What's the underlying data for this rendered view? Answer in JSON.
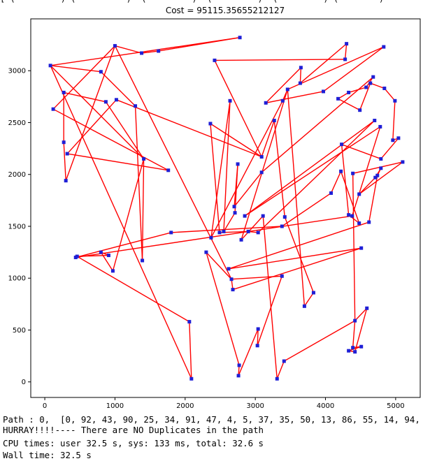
{
  "top_fragment": "[ (         ) (          )  (         )  (         )  (         ) (        )",
  "chart_data": {
    "type": "scatter",
    "title": "Cost = 95115.35655212127",
    "xlabel": "",
    "ylabel": "",
    "xlim": [
      -200,
      5350
    ],
    "ylim": [
      -150,
      3500
    ],
    "x_ticks": [
      0,
      1000,
      2000,
      3000,
      4000,
      5000
    ],
    "y_ticks": [
      0,
      500,
      1000,
      1500,
      2000,
      2500,
      3000
    ],
    "grid": false,
    "line_color": "#ff0000",
    "marker_color": "#1f1fd6",
    "cities": [
      {
        "id": 0,
        "x": 1000,
        "y": 3240
      },
      {
        "id": 1,
        "x": 800,
        "y": 2990
      },
      {
        "id": 2,
        "x": 80,
        "y": 3050
      },
      {
        "id": 3,
        "x": 1380,
        "y": 3170
      },
      {
        "id": 4,
        "x": 2780,
        "y": 3320
      },
      {
        "id": 5,
        "x": 1620,
        "y": 3190
      },
      {
        "id": 6,
        "x": 2420,
        "y": 3100
      },
      {
        "id": 7,
        "x": 4280,
        "y": 3110
      },
      {
        "id": 8,
        "x": 4300,
        "y": 3260
      },
      {
        "id": 9,
        "x": 4830,
        "y": 3230
      },
      {
        "id": 10,
        "x": 3650,
        "y": 3030
      },
      {
        "id": 11,
        "x": 3640,
        "y": 2880
      },
      {
        "id": 12,
        "x": 3970,
        "y": 2800
      },
      {
        "id": 13,
        "x": 3460,
        "y": 2820
      },
      {
        "id": 14,
        "x": 3150,
        "y": 2690
      },
      {
        "id": 15,
        "x": 3390,
        "y": 2710
      },
      {
        "id": 16,
        "x": 270,
        "y": 2790
      },
      {
        "id": 17,
        "x": 120,
        "y": 2630
      },
      {
        "id": 18,
        "x": 870,
        "y": 2700
      },
      {
        "id": 19,
        "x": 1020,
        "y": 2720
      },
      {
        "id": 20,
        "x": 1290,
        "y": 2660
      },
      {
        "id": 21,
        "x": 2640,
        "y": 2710
      },
      {
        "id": 22,
        "x": 2360,
        "y": 2490
      },
      {
        "id": 23,
        "x": 3270,
        "y": 2520
      },
      {
        "id": 24,
        "x": 270,
        "y": 2310
      },
      {
        "id": 25,
        "x": 320,
        "y": 2200
      },
      {
        "id": 26,
        "x": 1410,
        "y": 2150
      },
      {
        "id": 27,
        "x": 1760,
        "y": 2040
      },
      {
        "id": 28,
        "x": 3090,
        "y": 2170
      },
      {
        "id": 29,
        "x": 2750,
        "y": 2100
      },
      {
        "id": 30,
        "x": 3090,
        "y": 2020
      },
      {
        "id": 31,
        "x": 300,
        "y": 1940
      },
      {
        "id": 32,
        "x": 4180,
        "y": 2730
      },
      {
        "id": 33,
        "x": 4330,
        "y": 2790
      },
      {
        "id": 34,
        "x": 4580,
        "y": 2840
      },
      {
        "id": 35,
        "x": 4680,
        "y": 2940
      },
      {
        "id": 36,
        "x": 4640,
        "y": 2880
      },
      {
        "id": 37,
        "x": 4840,
        "y": 2830
      },
      {
        "id": 38,
        "x": 4990,
        "y": 2710
      },
      {
        "id": 39,
        "x": 4490,
        "y": 2620
      },
      {
        "id": 40,
        "x": 4700,
        "y": 2520
      },
      {
        "id": 41,
        "x": 4780,
        "y": 2460
      },
      {
        "id": 42,
        "x": 4960,
        "y": 2330
      },
      {
        "id": 43,
        "x": 5040,
        "y": 2350
      },
      {
        "id": 44,
        "x": 4230,
        "y": 2290
      },
      {
        "id": 45,
        "x": 4790,
        "y": 2150
      },
      {
        "id": 46,
        "x": 5100,
        "y": 2120
      },
      {
        "id": 47,
        "x": 4390,
        "y": 2010
      },
      {
        "id": 48,
        "x": 4220,
        "y": 2030
      },
      {
        "id": 49,
        "x": 4790,
        "y": 2060
      },
      {
        "id": 50,
        "x": 4740,
        "y": 1990
      },
      {
        "id": 51,
        "x": 4710,
        "y": 1970
      },
      {
        "id": 52,
        "x": 4480,
        "y": 1810
      },
      {
        "id": 53,
        "x": 4080,
        "y": 1820
      },
      {
        "id": 54,
        "x": 4330,
        "y": 1610
      },
      {
        "id": 55,
        "x": 4380,
        "y": 1600
      },
      {
        "id": 56,
        "x": 4480,
        "y": 1530
      },
      {
        "id": 57,
        "x": 4620,
        "y": 1540
      },
      {
        "id": 58,
        "x": 2700,
        "y": 1690
      },
      {
        "id": 59,
        "x": 2710,
        "y": 1630
      },
      {
        "id": 60,
        "x": 2550,
        "y": 1450
      },
      {
        "id": 61,
        "x": 2490,
        "y": 1440
      },
      {
        "id": 62,
        "x": 2370,
        "y": 1390
      },
      {
        "id": 63,
        "x": 2850,
        "y": 1600
      },
      {
        "id": 64,
        "x": 3110,
        "y": 1600
      },
      {
        "id": 65,
        "x": 3420,
        "y": 1590
      },
      {
        "id": 66,
        "x": 3380,
        "y": 1500
      },
      {
        "id": 67,
        "x": 3040,
        "y": 1440
      },
      {
        "id": 68,
        "x": 2900,
        "y": 1450
      },
      {
        "id": 69,
        "x": 2800,
        "y": 1370
      },
      {
        "id": 70,
        "x": 1800,
        "y": 1440
      },
      {
        "id": 71,
        "x": 2300,
        "y": 1250
      },
      {
        "id": 72,
        "x": 2620,
        "y": 1090
      },
      {
        "id": 73,
        "x": 2660,
        "y": 990
      },
      {
        "id": 74,
        "x": 2680,
        "y": 890
      },
      {
        "id": 75,
        "x": 4510,
        "y": 1290
      },
      {
        "id": 76,
        "x": 3380,
        "y": 1020
      },
      {
        "id": 77,
        "x": 800,
        "y": 1250
      },
      {
        "id": 78,
        "x": 910,
        "y": 1220
      },
      {
        "id": 79,
        "x": 460,
        "y": 1210
      },
      {
        "id": 80,
        "x": 440,
        "y": 1200
      },
      {
        "id": 81,
        "x": 970,
        "y": 1070
      },
      {
        "id": 82,
        "x": 1390,
        "y": 1170
      },
      {
        "id": 83,
        "x": 3830,
        "y": 860
      },
      {
        "id": 84,
        "x": 3700,
        "y": 730
      },
      {
        "id": 85,
        "x": 2060,
        "y": 580
      },
      {
        "id": 86,
        "x": 4590,
        "y": 710
      },
      {
        "id": 87,
        "x": 4420,
        "y": 590
      },
      {
        "id": 88,
        "x": 3040,
        "y": 510
      },
      {
        "id": 89,
        "x": 3030,
        "y": 350
      },
      {
        "id": 90,
        "x": 4510,
        "y": 340
      },
      {
        "id": 91,
        "x": 4390,
        "y": 330
      },
      {
        "id": 92,
        "x": 4330,
        "y": 300
      },
      {
        "id": 93,
        "x": 4420,
        "y": 290
      },
      {
        "id": 94,
        "x": 2770,
        "y": 160
      },
      {
        "id": 95,
        "x": 2760,
        "y": 60
      },
      {
        "id": 96,
        "x": 3410,
        "y": 200
      },
      {
        "id": 97,
        "x": 3310,
        "y": 30
      },
      {
        "id": 98,
        "x": 2090,
        "y": 30
      }
    ],
    "path": [
      0,
      3,
      5,
      4,
      2,
      1,
      20,
      82,
      26,
      2,
      98,
      85,
      79,
      78,
      77,
      81,
      26,
      18,
      16,
      24,
      31,
      0,
      17,
      27,
      25,
      19,
      28,
      6,
      7,
      8,
      11,
      10,
      14,
      12,
      9,
      13,
      15,
      62,
      21,
      60,
      59,
      29,
      58,
      30,
      35,
      34,
      33,
      32,
      39,
      36,
      37,
      38,
      42,
      43,
      45,
      44,
      54,
      56,
      48,
      53,
      66,
      70,
      80,
      55,
      41,
      63,
      40,
      67,
      68,
      61,
      22,
      28,
      23,
      65,
      83,
      84,
      13,
      69,
      64,
      97,
      96,
      87,
      86,
      93,
      92,
      90,
      91,
      87,
      47,
      46,
      52,
      51,
      49,
      50,
      57,
      72,
      75,
      74,
      73,
      71,
      94,
      95,
      88,
      89,
      76,
      73,
      0
    ]
  },
  "output": {
    "path_line": "Path : 0,  [0, 92, 43, 90, 25, 34, 91, 47, 4, 5, 37, 35, 50, 13, 86, 55, 14, 94,",
    "hurray_line": "HURRAY!!!!---- There are NO Duplicates in the path",
    "cpu_line": "CPU times: user 32.5 s, sys: 133 ms, total: 32.6 s",
    "wall_line": "Wall time: 32.5 s"
  }
}
